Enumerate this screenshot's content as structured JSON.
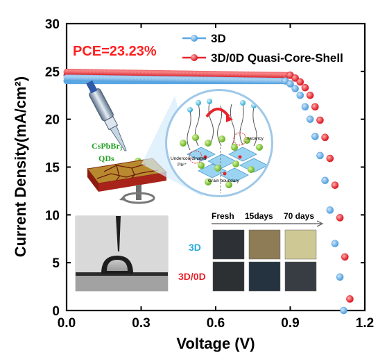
{
  "chart_data": {
    "type": "scatter",
    "xlabel": "Voltage (V)",
    "ylabel": "Current Density(mA/cm²)",
    "xlim": [
      0.0,
      1.2
    ],
    "ylim": [
      0,
      30
    ],
    "xticks": [
      "0.0",
      "0.3",
      "0.6",
      "0.9",
      "1.2"
    ],
    "yticks": [
      "0",
      "5",
      "10",
      "15",
      "20",
      "25",
      "30"
    ],
    "legend_position": "top-right",
    "annotation": "PCE=23.23%",
    "series": [
      {
        "name": "3D",
        "color": "#5aa7e3",
        "x": [
          0.88,
          0.9,
          0.92,
          0.94,
          0.96,
          0.98,
          1.0,
          1.02,
          1.04,
          1.06,
          1.08,
          1.1,
          1.115
        ],
        "y": [
          24.0,
          23.7,
          23.2,
          22.5,
          21.3,
          20.0,
          18.2,
          16.2,
          13.6,
          10.5,
          7.0,
          3.5,
          0.0
        ]
      },
      {
        "name": "3D/0D Quasi-Core-Shell",
        "color": "#e8232c",
        "x": [
          0.9,
          0.92,
          0.94,
          0.96,
          0.98,
          1.0,
          1.02,
          1.04,
          1.06,
          1.08,
          1.1,
          1.12,
          1.14
        ],
        "y": [
          24.6,
          24.3,
          23.9,
          23.3,
          22.5,
          21.3,
          19.9,
          18.1,
          15.9,
          13.1,
          9.7,
          5.6,
          1.2
        ]
      }
    ],
    "inset_labels": {
      "cspbbr3": "CsPbBr₃",
      "qds": "QDs",
      "vacancy": "vacancy",
      "undercoordinated": "Undercoordinated",
      "pb": "Pb²⁺",
      "grain_boundary": "Grain boundary",
      "stability_headers": [
        "Fresh",
        "15days",
        "70 days"
      ],
      "row_3d": "3D",
      "row_3d0d": "3D/0D"
    }
  },
  "colors": {
    "film_3d": [
      "#2d3136",
      "#8e7c57",
      "#cdc894"
    ],
    "film_3d0d": [
      "#2c3032",
      "#253341",
      "#383d44"
    ]
  }
}
